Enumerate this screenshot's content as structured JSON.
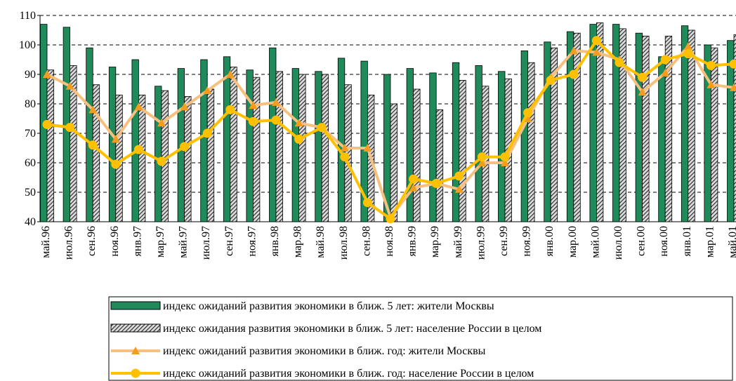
{
  "chart_data": {
    "type": "bar",
    "categories": [
      "май.96",
      "июл.96",
      "сен.96",
      "ноя.96",
      "янв.97",
      "мар.97",
      "май.97",
      "июл.97",
      "сен.97",
      "ноя.97",
      "янв.98",
      "мар.98",
      "май.98",
      "июл.98",
      "сен.98",
      "ноя.98",
      "янв.99",
      "мар.99",
      "май.99",
      "июл.99",
      "сен.99",
      "ноя.99",
      "янв.00",
      "мар.00",
      "май.00",
      "июл.00",
      "сен.00",
      "ноя.00",
      "янв.01",
      "мар.01",
      "май.01"
    ],
    "series": [
      {
        "name": "индекс ожиданий развития экономики в ближ. 5 лет: жители Москвы",
        "type": "bar",
        "color": "#1f8a5a",
        "values": [
          107,
          106,
          99,
          92.5,
          95,
          86,
          92,
          95,
          96,
          91.5,
          99,
          92,
          91,
          95.5,
          94.5,
          90,
          92,
          90.5,
          94,
          93,
          91,
          98,
          101,
          104.5,
          107,
          107,
          104,
          96,
          106.5,
          100,
          101.5
        ]
      },
      {
        "name": "индекс ожидания развития экономики в ближ. 5 лет: население России в целом",
        "type": "bar",
        "color": "#444444",
        "fill_style": "hatch",
        "values": [
          91.5,
          93,
          86.5,
          83,
          83,
          84.5,
          82.5,
          85,
          92.5,
          89,
          91,
          90,
          90,
          86.5,
          83,
          80,
          85,
          78,
          88,
          86,
          88.5,
          94,
          99,
          104,
          107.5,
          105.5,
          103,
          103,
          105,
          99,
          103.5
        ]
      },
      {
        "name": "индекс ожиданий развития экономики в ближ. год: жители Москвы",
        "type": "line",
        "marker": "triangle",
        "color": "#f7c07e",
        "marker_color": "#f39c1e",
        "values": [
          90,
          86,
          78,
          68,
          79,
          73.5,
          79,
          84.5,
          90,
          79.5,
          80.5,
          73.5,
          72,
          65,
          65,
          41.5,
          51.5,
          53,
          51,
          60,
          60,
          75,
          89,
          98,
          97.5,
          95,
          84,
          90.5,
          99.5,
          86.5,
          85.5
        ]
      },
      {
        "name": "индекс ожиданий развития экономики в ближ. год: население России в целом",
        "type": "line",
        "marker": "circle",
        "color": "#ffc000",
        "marker_color": "#ffc000",
        "values": [
          73,
          72,
          66,
          59.5,
          64.5,
          60.5,
          65.5,
          70,
          78,
          74,
          74.5,
          68,
          72,
          62,
          46.5,
          41,
          54.5,
          53,
          55.5,
          62,
          62,
          77,
          88,
          90,
          101.5,
          94,
          89,
          95,
          97,
          93,
          93.5
        ]
      }
    ],
    "ylim": [
      40,
      110
    ],
    "yticks": [
      40,
      50,
      60,
      70,
      80,
      90,
      100,
      110
    ],
    "grid": true
  }
}
